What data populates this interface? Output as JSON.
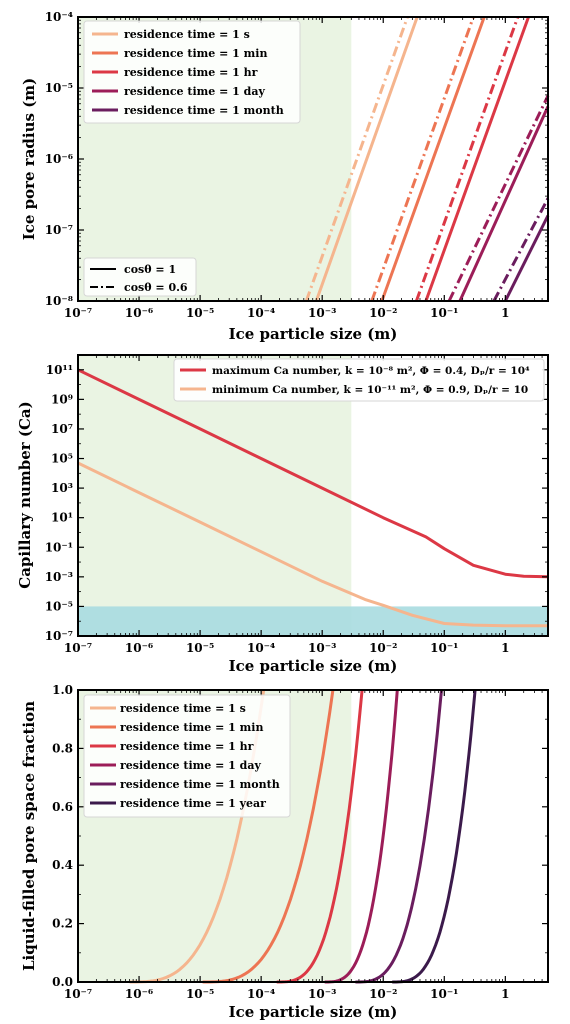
{
  "colors": {
    "s": "#f5b58e",
    "min": "#ed7553",
    "hr": "#dc3845",
    "day": "#9c1d58",
    "month": "#6a1d5e",
    "year": "#3b1a4b",
    "shade_green": "#eaf4e3",
    "shade_cyan": "#a9dbe0"
  },
  "chart_data": [
    {
      "type": "line",
      "xlabel": "Ice particle size (m)",
      "ylabel": "Ice pore radius (m)",
      "xscale": "log",
      "yscale": "log",
      "xlim": [
        1e-07,
        5
      ],
      "ylim": [
        1e-08,
        0.0001
      ],
      "xticks": [
        "10⁻⁷",
        "10⁻⁶",
        "10⁻⁵",
        "10⁻⁴",
        "10⁻³",
        "10⁻²",
        "10⁻¹",
        "1"
      ],
      "yticks": [
        "10⁻⁸",
        "10⁻⁷",
        "10⁻⁶",
        "10⁻⁵",
        "10⁻⁴"
      ],
      "shaded_x_region": [
        1e-07,
        0.003
      ],
      "legend_series_placement": "top-left",
      "legend_series": [
        {
          "label": "residence time = 1 s",
          "color_key": "s"
        },
        {
          "label": "residence time = 1 min",
          "color_key": "min"
        },
        {
          "label": "residence time = 1 hr",
          "color_key": "hr"
        },
        {
          "label": "residence time = 1 day",
          "color_key": "day"
        },
        {
          "label": "residence time = 1 month",
          "color_key": "month"
        }
      ],
      "legend_styles_placement": "bottom-left",
      "legend_styles": [
        {
          "label": "cosθ = 1",
          "dash": "solid"
        },
        {
          "label": "cosθ = 0.6",
          "dash": "dashdot"
        }
      ],
      "series": [
        {
          "color_key": "s",
          "dash": "solid",
          "x": [
            0.0008,
            0.036
          ],
          "y": [
            1e-08,
            0.0001
          ]
        },
        {
          "color_key": "s",
          "dash": "dashdot",
          "x": [
            0.00055,
            0.025
          ],
          "y": [
            1e-08,
            0.0001
          ]
        },
        {
          "color_key": "min",
          "dash": "solid",
          "x": [
            0.0095,
            0.45
          ],
          "y": [
            1e-08,
            0.0001
          ]
        },
        {
          "color_key": "min",
          "dash": "dashdot",
          "x": [
            0.0065,
            0.3
          ],
          "y": [
            1e-08,
            0.0001
          ]
        },
        {
          "color_key": "hr",
          "dash": "solid",
          "x": [
            0.05,
            2.4
          ],
          "y": [
            1e-08,
            0.0001
          ]
        },
        {
          "color_key": "hr",
          "dash": "dashdot",
          "x": [
            0.035,
            1.6
          ],
          "y": [
            1e-08,
            0.0001
          ]
        },
        {
          "color_key": "day",
          "dash": "solid",
          "x": [
            0.18,
            5
          ],
          "y": [
            1e-08,
            5.5e-06
          ]
        },
        {
          "color_key": "day",
          "dash": "dashdot",
          "x": [
            0.12,
            5
          ],
          "y": [
            1e-08,
            7.8e-06
          ]
        },
        {
          "color_key": "month",
          "dash": "solid",
          "x": [
            1.0,
            5
          ],
          "y": [
            1e-08,
            1.6e-07
          ]
        },
        {
          "color_key": "month",
          "dash": "dashdot",
          "x": [
            0.65,
            5
          ],
          "y": [
            1e-08,
            2.8e-07
          ]
        }
      ]
    },
    {
      "type": "line",
      "xlabel": "Ice particle size (m)",
      "ylabel": "Capillary number (Ca)",
      "xscale": "log",
      "yscale": "log",
      "xlim": [
        1e-07,
        5
      ],
      "ylim": [
        1e-07,
        1000000000000.0
      ],
      "xticks": [
        "10⁻⁷",
        "10⁻⁶",
        "10⁻⁵",
        "10⁻⁴",
        "10⁻³",
        "10⁻²",
        "10⁻¹",
        "1"
      ],
      "yticks": [
        "10⁻⁷",
        "10⁻⁵",
        "10⁻³",
        "10⁻¹",
        "10¹",
        "10³",
        "10⁵",
        "10⁷",
        "10⁹",
        "10¹¹"
      ],
      "shaded_x_region": [
        1e-07,
        0.003
      ],
      "shaded_y_band": [
        1e-07,
        1e-05
      ],
      "legend_placement": "top-right",
      "legend": [
        {
          "label": "maximum Ca number, k = 10⁻⁸ m², Φ = 0.4, Dₚ/r = 10⁴",
          "color_key": "hr"
        },
        {
          "label": "minimum Ca number, k = 10⁻¹¹ m², Φ = 0.9, Dₚ/r = 10",
          "color_key": "s"
        }
      ],
      "series": [
        {
          "color_key": "hr",
          "x": [
            1e-07,
            1e-06,
            1e-05,
            0.0001,
            0.001,
            0.01,
            0.05,
            0.1,
            0.3,
            1,
            2,
            5
          ],
          "y": [
            100000000000.0,
            1000000000.0,
            10000000.0,
            100000.0,
            1000.0,
            10.0,
            0.5,
            0.08,
            0.006,
            0.0015,
            0.0011,
            0.001
          ]
        },
        {
          "color_key": "s",
          "x": [
            1e-07,
            1e-06,
            1e-05,
            0.0001,
            0.001,
            0.005,
            0.01,
            0.03,
            0.1,
            0.3,
            1,
            5
          ],
          "y": [
            50000.0,
            500.0,
            5,
            0.05,
            0.0005,
            3e-05,
            1.2e-05,
            2.5e-06,
            7e-07,
            5.5e-07,
            5e-07,
            5e-07
          ]
        }
      ]
    },
    {
      "type": "line",
      "xlabel": "Ice particle size (m)",
      "ylabel": "Liquid-filled pore space fraction",
      "xscale": "log",
      "yscale": "linear",
      "xlim": [
        1e-07,
        5
      ],
      "ylim": [
        0,
        1
      ],
      "xticks": [
        "10⁻⁷",
        "10⁻⁶",
        "10⁻⁵",
        "10⁻⁴",
        "10⁻³",
        "10⁻²",
        "10⁻¹",
        "1"
      ],
      "yticks": [
        "0.0",
        "0.2",
        "0.4",
        "0.6",
        "0.8",
        "1.0"
      ],
      "shaded_x_region": [
        1e-07,
        0.003
      ],
      "legend_placement": "top-left",
      "legend": [
        {
          "label": "residence time = 1 s",
          "color_key": "s"
        },
        {
          "label": "residence time = 1 min",
          "color_key": "min"
        },
        {
          "label": "residence time = 1 hr",
          "color_key": "hr"
        },
        {
          "label": "residence time = 1 day",
          "color_key": "day"
        },
        {
          "label": "residence time = 1 month",
          "color_key": "month"
        },
        {
          "label": "residence time = 1 year",
          "color_key": "year"
        }
      ],
      "series": [
        {
          "color_key": "s",
          "x0": 7e-07,
          "x1": 0.00011
        },
        {
          "color_key": "min",
          "x0": 1.1e-05,
          "x1": 0.0015
        },
        {
          "color_key": "hr",
          "x0": 0.00018,
          "x1": 0.0045
        },
        {
          "color_key": "day",
          "x0": 0.0011,
          "x1": 0.017
        },
        {
          "color_key": "month",
          "x0": 0.0035,
          "x1": 0.09
        },
        {
          "color_key": "year",
          "x0": 0.014,
          "x1": 0.32
        }
      ]
    }
  ]
}
